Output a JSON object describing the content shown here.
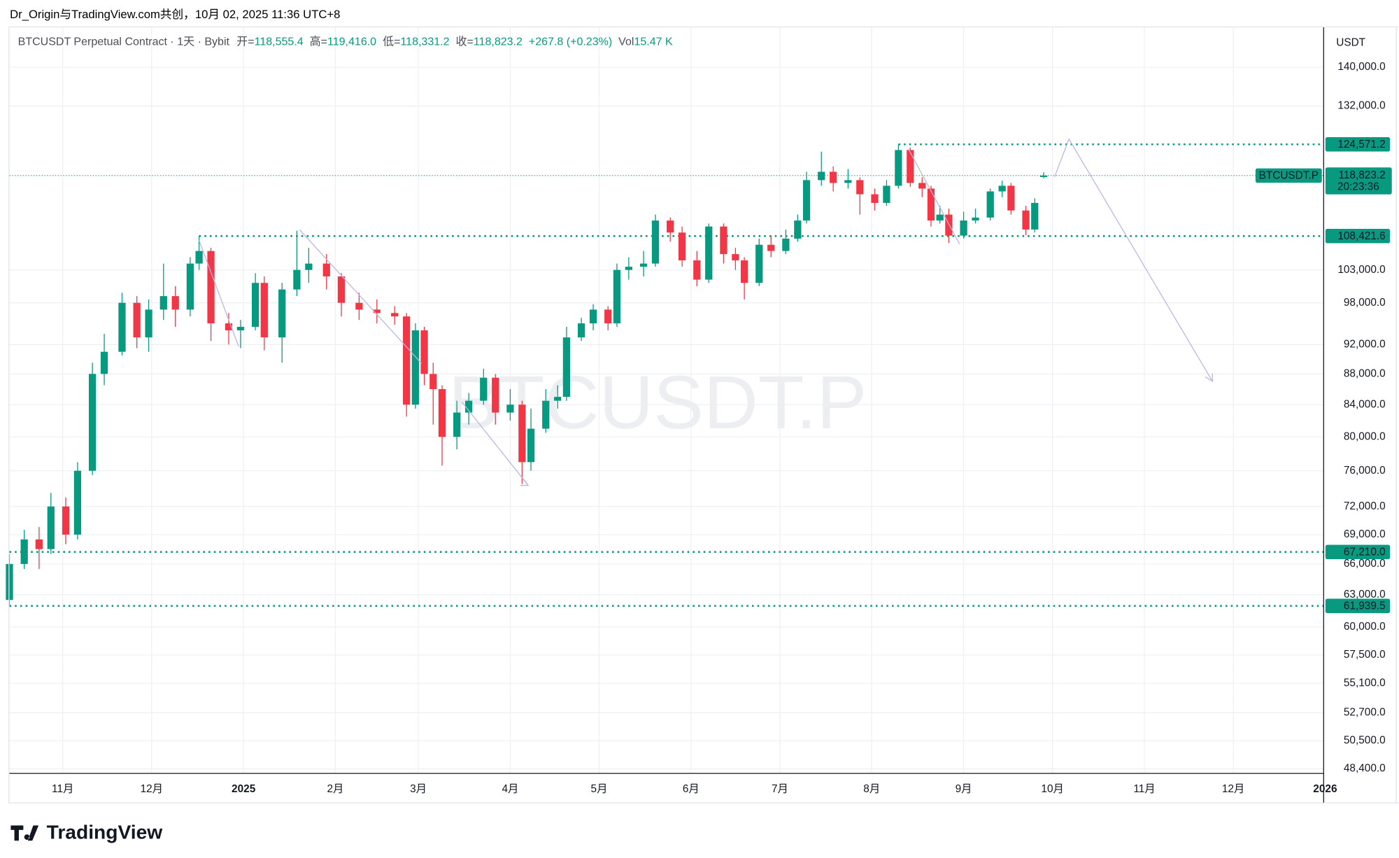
{
  "header": {
    "attribution": "Dr_Origin与TradingView.com共创，10月 02, 2025 11:36 UTC+8",
    "symbol": "BTCUSDT Perpetual Contract · 1天 · Bybit",
    "ohlc": [
      {
        "key": "开=",
        "value": "118,555.4"
      },
      {
        "key": "高=",
        "value": "119,416.0"
      },
      {
        "key": "低=",
        "value": "118,331.2"
      },
      {
        "key": "收=",
        "value": "118,823.2"
      }
    ],
    "change": "+267.8 (+0.23%)",
    "volume_key": "Vol",
    "volume": "15.47 K"
  },
  "chart_data": {
    "type": "candlestick",
    "watermark": "BTCUSDT.P",
    "currency": "USDT",
    "log_scale": true,
    "grid": true,
    "up_color": "#089981",
    "down_color": "#f23645",
    "x": [
      0,
      5,
      10,
      14,
      19,
      23,
      28,
      32,
      38,
      43,
      47,
      52,
      56,
      61,
      64,
      68,
      74,
      78,
      83,
      86,
      92,
      97,
      101,
      107,
      112,
      118,
      124,
      130,
      134,
      137,
      140,
      143,
      146,
      151,
      155,
      160,
      164,
      169,
      173,
      176,
      181,
      185,
      188,
      193,
      197,
      202,
      205,
      209,
      214,
      218,
      223,
      227,
      232,
      236,
      241,
      245,
      248,
      253,
      257,
      262,
      266,
      269,
      274,
      278,
      283,
      287,
      292,
      296,
      300,
      304,
      308,
      311,
      314,
      317,
      322,
      326,
      331,
      335,
      338,
      343,
      346,
      349
    ],
    "open": [
      62500,
      66000,
      68500,
      67500,
      72000,
      69000,
      76000,
      88000,
      91000,
      98000,
      93000,
      97000,
      99000,
      97000,
      104000,
      106000,
      95000,
      94000,
      94500,
      101000,
      93000,
      100000,
      103000,
      104000,
      102000,
      98000,
      97000,
      96500,
      96000,
      84000,
      94000,
      88000,
      86000,
      80000,
      83000,
      84500,
      87500,
      83000,
      84000,
      77000,
      81000,
      84500,
      85000,
      93000,
      95000,
      97000,
      95000,
      103000,
      103500,
      104000,
      111000,
      109000,
      104500,
      101500,
      110000,
      105500,
      104500,
      101000,
      107000,
      106000,
      108000,
      111000,
      118000,
      119500,
      117500,
      118000,
      115500,
      114000,
      117000,
      123500,
      117500,
      116500,
      111000,
      112000,
      108500,
      111000,
      111500,
      116000,
      117000,
      112700,
      109500,
      118555.4
    ],
    "high": [
      67000,
      69500,
      69800,
      73500,
      73000,
      77000,
      89500,
      93500,
      99500,
      99000,
      98500,
      104000,
      100500,
      105000,
      108421.6,
      106500,
      96500,
      95500,
      102500,
      102000,
      101000,
      109300,
      106500,
      105500,
      102500,
      99500,
      98500,
      97500,
      96500,
      95000,
      94500,
      89500,
      86500,
      84500,
      85500,
      88700,
      88000,
      86000,
      84500,
      83500,
      86000,
      86500,
      94500,
      95800,
      97800,
      97500,
      104000,
      105000,
      106000,
      112000,
      111500,
      110000,
      106000,
      110500,
      110500,
      106500,
      105000,
      108000,
      108500,
      109500,
      112000,
      119500,
      123200,
      120500,
      120000,
      118500,
      116500,
      118000,
      124571.2,
      124000,
      118500,
      117000,
      113500,
      113000,
      112500,
      113000,
      116500,
      117900,
      117500,
      113500,
      114800,
      119416
    ],
    "low": [
      62000,
      65500,
      65500,
      67000,
      68000,
      68500,
      75500,
      86500,
      90500,
      91500,
      91000,
      95500,
      94500,
      96000,
      103000,
      92500,
      92000,
      91500,
      94000,
      91200,
      89500,
      99000,
      101000,
      100000,
      96000,
      95500,
      95000,
      94800,
      82500,
      83500,
      86500,
      81500,
      76600,
      78500,
      81500,
      84000,
      81500,
      82000,
      74500,
      76000,
      80500,
      83500,
      84500,
      92500,
      94000,
      94000,
      94500,
      101500,
      102000,
      103500,
      107500,
      103500,
      100500,
      101000,
      104000,
      103000,
      98500,
      100500,
      105000,
      105500,
      107500,
      110500,
      117000,
      116000,
      116500,
      112000,
      112700,
      113500,
      116500,
      116800,
      115000,
      110000,
      110500,
      107300,
      108000,
      110500,
      111000,
      115000,
      112000,
      108600,
      109000,
      118331.2
    ],
    "close": [
      66000,
      68500,
      67500,
      72000,
      69000,
      76000,
      88000,
      91000,
      98000,
      93000,
      97000,
      99000,
      97000,
      104000,
      106000,
      95000,
      94000,
      94500,
      101000,
      93000,
      100000,
      103000,
      104000,
      102000,
      98000,
      97000,
      96500,
      96000,
      84000,
      94000,
      88000,
      86000,
      80000,
      83000,
      84500,
      87500,
      83000,
      84000,
      77000,
      81000,
      84500,
      85000,
      93000,
      95000,
      97000,
      95000,
      103000,
      103500,
      104000,
      111000,
      109000,
      104500,
      101500,
      110000,
      105500,
      104500,
      101000,
      107000,
      106000,
      108000,
      111000,
      118000,
      119500,
      117500,
      118000,
      115500,
      114000,
      117000,
      123500,
      117500,
      116500,
      111000,
      112000,
      108500,
      111000,
      111500,
      116000,
      117000,
      112700,
      109500,
      114000,
      118823.2
    ],
    "xlim": [
      0,
      443.5
    ],
    "xticks": [
      {
        "value": 18,
        "label": "11月"
      },
      {
        "value": 48,
        "label": "12月"
      },
      {
        "value": 79,
        "label": "2025"
      },
      {
        "value": 110,
        "label": "2月"
      },
      {
        "value": 138,
        "label": "3月"
      },
      {
        "value": 169,
        "label": "4月"
      },
      {
        "value": 199,
        "label": "5月"
      },
      {
        "value": 230,
        "label": "6月"
      },
      {
        "value": 260,
        "label": "7月"
      },
      {
        "value": 291,
        "label": "8月"
      },
      {
        "value": 322,
        "label": "9月"
      },
      {
        "value": 352,
        "label": "10月"
      },
      {
        "value": 383,
        "label": "11月"
      },
      {
        "value": 413,
        "label": "12月"
      },
      {
        "value": 444,
        "label": "2026"
      }
    ],
    "ylim": [
      48070,
      148800
    ],
    "yticks": [
      {
        "value": 140000,
        "label": "140,000.0"
      },
      {
        "value": 132000,
        "label": "132,000.0"
      },
      {
        "value": 103000,
        "label": "103,000.0"
      },
      {
        "value": 98000,
        "label": "98,000.0"
      },
      {
        "value": 92000,
        "label": "92,000.0"
      },
      {
        "value": 88000,
        "label": "88,000.0"
      },
      {
        "value": 84000,
        "label": "84,000.0"
      },
      {
        "value": 80000,
        "label": "80,000.0"
      },
      {
        "value": 76000,
        "label": "76,000.0"
      },
      {
        "value": 72000,
        "label": "72,000.0"
      },
      {
        "value": 69000,
        "label": "69,000.0"
      },
      {
        "value": 66000,
        "label": "66,000.0"
      },
      {
        "value": 63000,
        "label": "63,000.0"
      },
      {
        "value": 60000,
        "label": "60,000.0"
      },
      {
        "value": 57500,
        "label": "57,500.0"
      },
      {
        "value": 55100,
        "label": "55,100.0"
      },
      {
        "value": 52700,
        "label": "52,700.0"
      },
      {
        "value": 50500,
        "label": "50,500.0"
      },
      {
        "value": 48400,
        "label": "48,400.0"
      }
    ],
    "levels": [
      {
        "value": 124571.2,
        "label": "124,571.2"
      },
      {
        "value": 108421.6,
        "label": "108,421.6"
      },
      {
        "value": 67210,
        "label": "67,210.0"
      },
      {
        "value": 61939.5,
        "label": "61,939.5"
      }
    ],
    "last_price": {
      "value": 118823.2,
      "label": "118,823.2",
      "symbol": "BTCUSDT.P",
      "countdown": "20:23:36"
    }
  },
  "footer": {
    "brand": "TradingView"
  }
}
